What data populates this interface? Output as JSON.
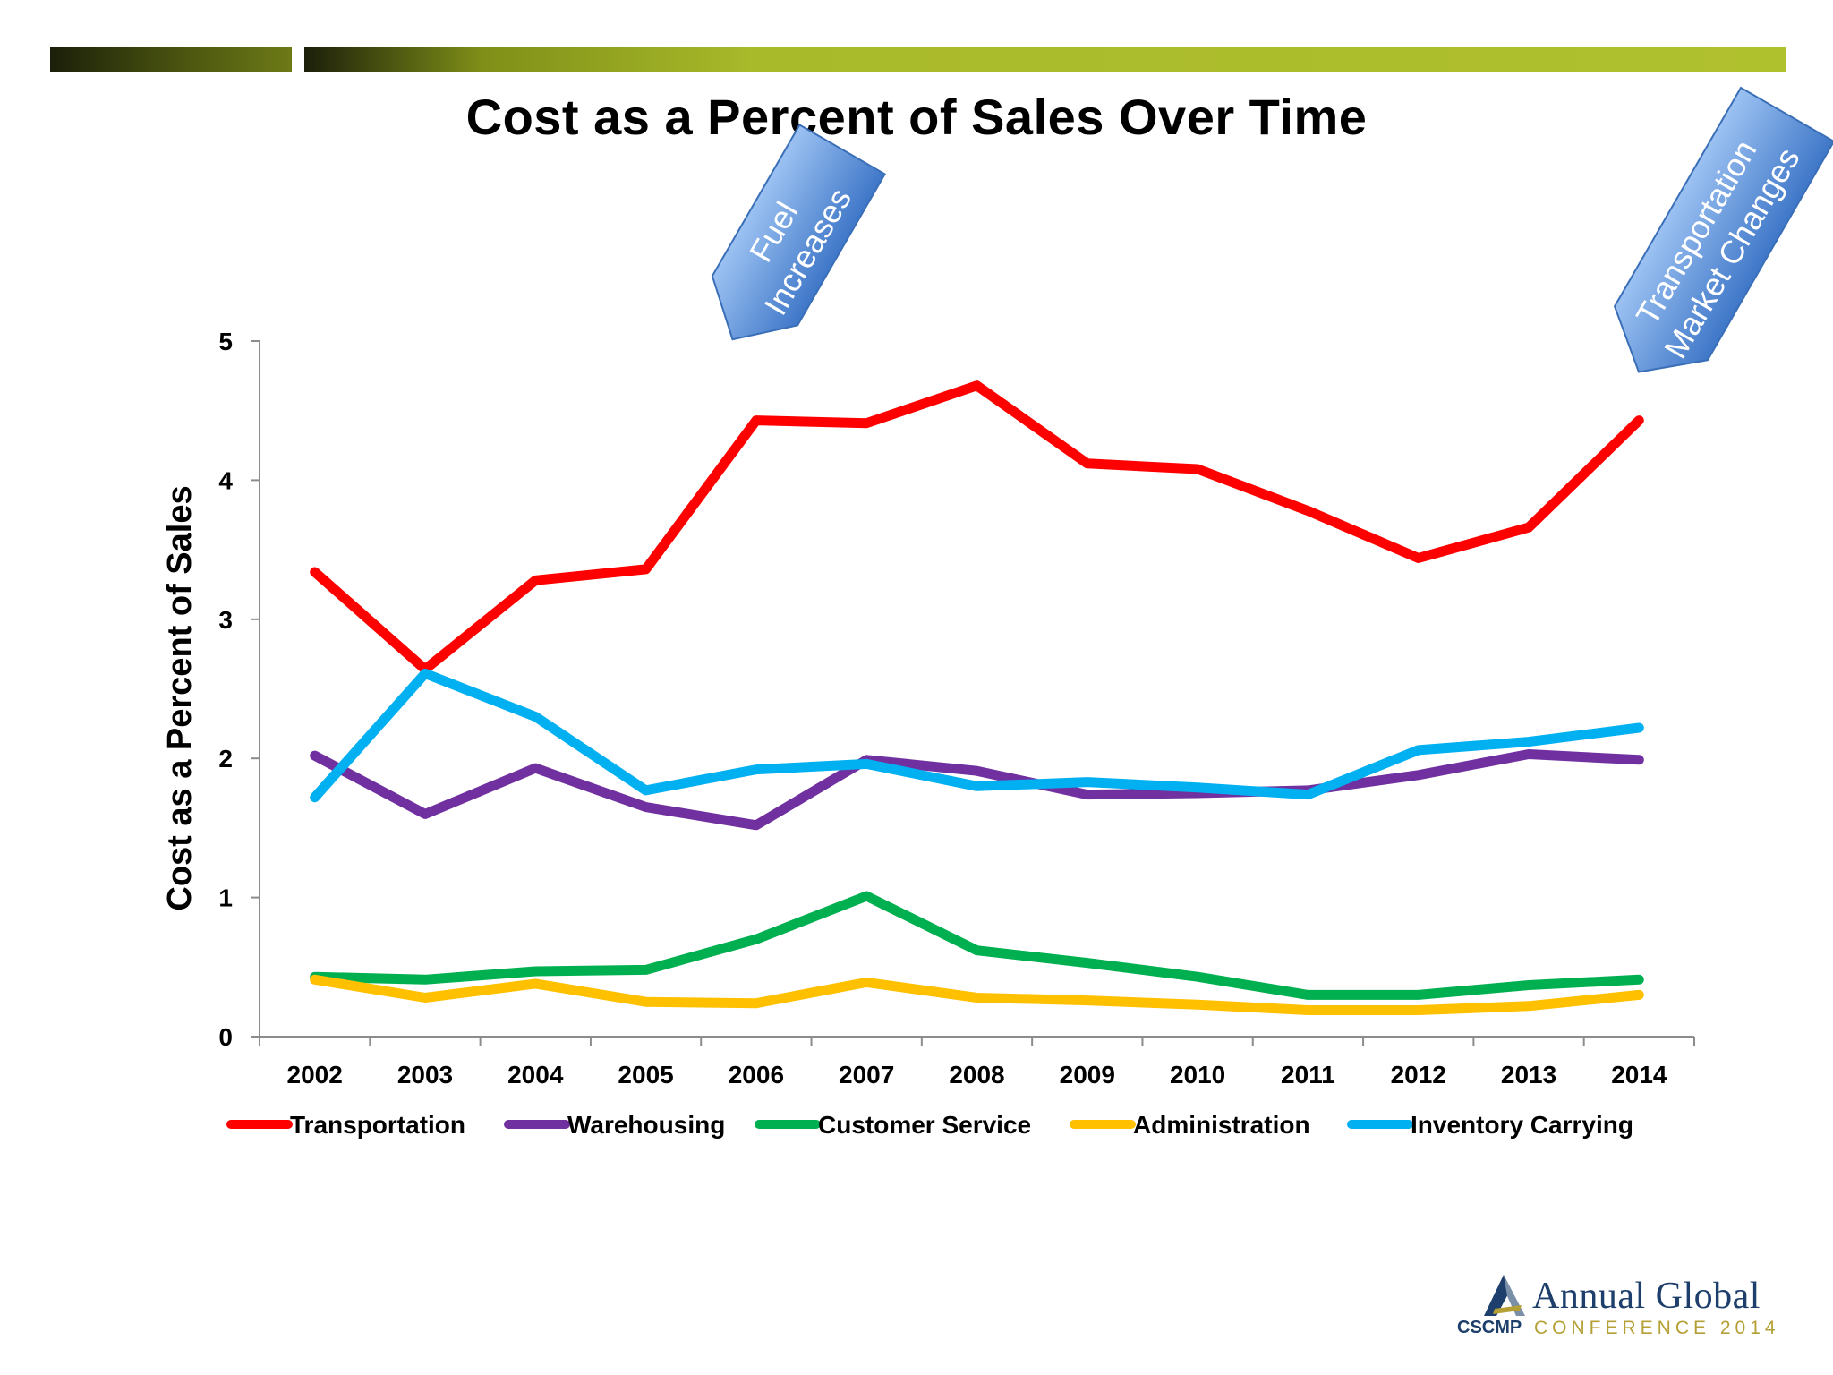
{
  "slide": {
    "title": "Cost as a Percent of Sales Over Time",
    "callouts": {
      "fuel": [
        "Fuel",
        "Increases"
      ],
      "market": [
        "Transportation",
        "Market Changes"
      ]
    },
    "logo": {
      "annual_global": "Annual Global",
      "cscmp": "CSCMP",
      "conference": "CONFERENCE 2014"
    }
  },
  "chart_data": {
    "type": "line",
    "title": "Cost as a Percent of Sales Over Time",
    "xlabel": "",
    "ylabel": "Cost as a Percent of Sales",
    "ylim": [
      0,
      5
    ],
    "yticks": [
      0,
      1,
      2,
      3,
      4,
      5
    ],
    "grid": false,
    "legend_position": "bottom",
    "categories": [
      "2002",
      "2003",
      "2004",
      "2005",
      "2006",
      "2007",
      "2008",
      "2009",
      "2010",
      "2011",
      "2012",
      "2013",
      "2014"
    ],
    "series": [
      {
        "name": "Transportation",
        "color": "#ff0000",
        "values": [
          3.34,
          2.64,
          3.28,
          3.36,
          4.43,
          4.41,
          4.68,
          4.12,
          4.08,
          3.78,
          3.44,
          3.66,
          4.43
        ]
      },
      {
        "name": "Warehousing",
        "color": "#7030a0",
        "values": [
          2.02,
          1.6,
          1.93,
          1.65,
          1.52,
          1.99,
          1.91,
          1.74,
          1.75,
          1.77,
          1.88,
          2.03,
          1.99
        ]
      },
      {
        "name": "Customer Service",
        "color": "#00b050",
        "values": [
          0.43,
          0.41,
          0.47,
          0.48,
          0.7,
          1.01,
          0.62,
          0.53,
          0.43,
          0.3,
          0.3,
          0.37,
          0.41
        ]
      },
      {
        "name": "Administration",
        "color": "#ffc000",
        "values": [
          0.41,
          0.28,
          0.38,
          0.25,
          0.24,
          0.39,
          0.28,
          0.26,
          0.23,
          0.19,
          0.19,
          0.22,
          0.3
        ]
      },
      {
        "name": "Inventory Carrying",
        "color": "#00b0f0",
        "values": [
          1.72,
          2.61,
          2.3,
          1.77,
          1.92,
          1.96,
          1.8,
          1.83,
          1.79,
          1.74,
          2.06,
          2.12,
          2.22
        ]
      }
    ]
  }
}
